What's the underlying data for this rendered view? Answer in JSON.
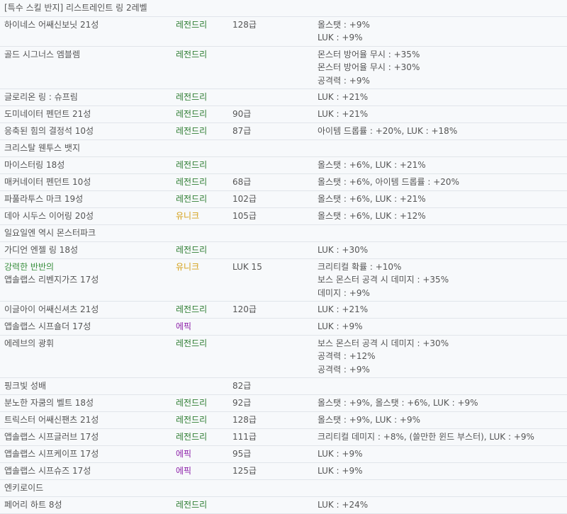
{
  "colors": {
    "legendary": "#2e7d32",
    "unique": "#d4a017",
    "epic": "#8e24aa",
    "highlight": "#388e3c"
  },
  "rows": [
    {
      "name": [
        "[특수 스킬 반지] 리스트레인트 링 2레벨"
      ],
      "grade": "",
      "level": "",
      "stats": []
    },
    {
      "name": [
        "하이네스 어쌔신보닛 21성"
      ],
      "grade": "레전드리",
      "level": "128급",
      "stats": [
        "올스탯 : +9%",
        "LUK : +9%"
      ]
    },
    {
      "name": [
        "골드 시그너스 엠블렘"
      ],
      "grade": "레전드리",
      "level": "",
      "stats": [
        "몬스터 방어율 무시 : +35%",
        "몬스터 방어율 무시 : +30%",
        "공격력 : +9%"
      ]
    },
    {
      "name": [
        "글로리온 링 : 슈프림"
      ],
      "grade": "레전드리",
      "level": "",
      "stats": [
        "LUK : +21%"
      ]
    },
    {
      "name": [
        "도미네이터 펜던트 21성"
      ],
      "grade": "레전드리",
      "level": "90급",
      "stats": [
        "LUK : +21%"
      ]
    },
    {
      "name": [
        "응축된 힘의 결정석 10성"
      ],
      "grade": "레전드리",
      "level": "87급",
      "stats": [
        "아이템 드롭률 : +20%, LUK : +18%"
      ]
    },
    {
      "name": [
        "크리스탈 웬투스 뱃지"
      ],
      "grade": "",
      "level": "",
      "stats": []
    },
    {
      "name": [
        "마이스터링 18성"
      ],
      "grade": "레전드리",
      "level": "",
      "stats": [
        "올스탯 : +6%, LUK : +21%"
      ]
    },
    {
      "name": [
        "매커네이터 펜던트 10성"
      ],
      "grade": "레전드리",
      "level": "68급",
      "stats": [
        "올스탯 : +6%, 아이템 드롭률 : +20%"
      ]
    },
    {
      "name": [
        "파풀라투스 마크 19성"
      ],
      "grade": "레전드리",
      "level": "102급",
      "stats": [
        "올스탯 : +6%, LUK : +21%"
      ]
    },
    {
      "name": [
        "데아 시두스 이어링 20성"
      ],
      "grade": "유니크",
      "level": "105급",
      "stats": [
        "올스탯 : +6%, LUK : +12%"
      ]
    },
    {
      "name": [
        "일요일엔 역시 몬스터파크"
      ],
      "grade": "",
      "level": "",
      "stats": []
    },
    {
      "name": [
        "가디언 엔젤 링 18성"
      ],
      "grade": "레전드리",
      "level": "",
      "stats": [
        "LUK : +30%"
      ]
    },
    {
      "name": [
        "강력한 반반의",
        "앱솔랩스 리벤지가즈 17성"
      ],
      "grade": "유니크",
      "level": "LUK 15",
      "stats": [
        "크리티컬 확률 : +10%",
        "보스 몬스터 공격 시 데미지 : +35%",
        "데미지 : +9%"
      ]
    },
    {
      "name": [
        "이글아이 어쌔신셔츠 21성"
      ],
      "grade": "레전드리",
      "level": "120급",
      "stats": [
        "LUK : +21%"
      ]
    },
    {
      "name": [
        "앱솔랩스 시프숄더 17성"
      ],
      "grade": "에픽",
      "level": "",
      "stats": [
        "LUK : +9%"
      ]
    },
    {
      "name": [
        "에레브의 광휘"
      ],
      "grade": "레전드리",
      "level": "",
      "stats": [
        "보스 몬스터 공격 시 데미지 : +30%",
        "공격력 : +12%",
        "공격력 : +9%"
      ]
    },
    {
      "name": [
        "핑크빛 성배"
      ],
      "grade": "",
      "level": "82급",
      "stats": []
    },
    {
      "name": [
        "분노한 자쿰의 벨트 18성"
      ],
      "grade": "레전드리",
      "level": "92급",
      "stats": [
        "올스탯 : +9%, 올스탯 : +6%, LUK : +9%"
      ]
    },
    {
      "name": [
        "트릭스터 어쌔신팬츠 21성"
      ],
      "grade": "레전드리",
      "level": "128급",
      "stats": [
        "올스탯 : +9%, LUK : +9%"
      ]
    },
    {
      "name": [
        "앱솔랩스 시프글러브 17성"
      ],
      "grade": "레전드리",
      "level": "111급",
      "stats": [
        "크리티컬 데미지 : +8%, (쓸만한 윈드 부스터), LUK : +9%"
      ]
    },
    {
      "name": [
        "앱솔랩스 시프케이프 17성"
      ],
      "grade": "에픽",
      "level": "95급",
      "stats": [
        "LUK : +9%"
      ]
    },
    {
      "name": [
        "앱솔랩스 시프슈즈 17성"
      ],
      "grade": "에픽",
      "level": "125급",
      "stats": [
        "LUK : +9%"
      ]
    },
    {
      "name": [
        "엔키로이드"
      ],
      "grade": "",
      "level": "",
      "stats": []
    },
    {
      "name": [
        "페어리 하트 8성"
      ],
      "grade": "레전드리",
      "level": "",
      "stats": [
        "LUK : +24%"
      ]
    }
  ]
}
